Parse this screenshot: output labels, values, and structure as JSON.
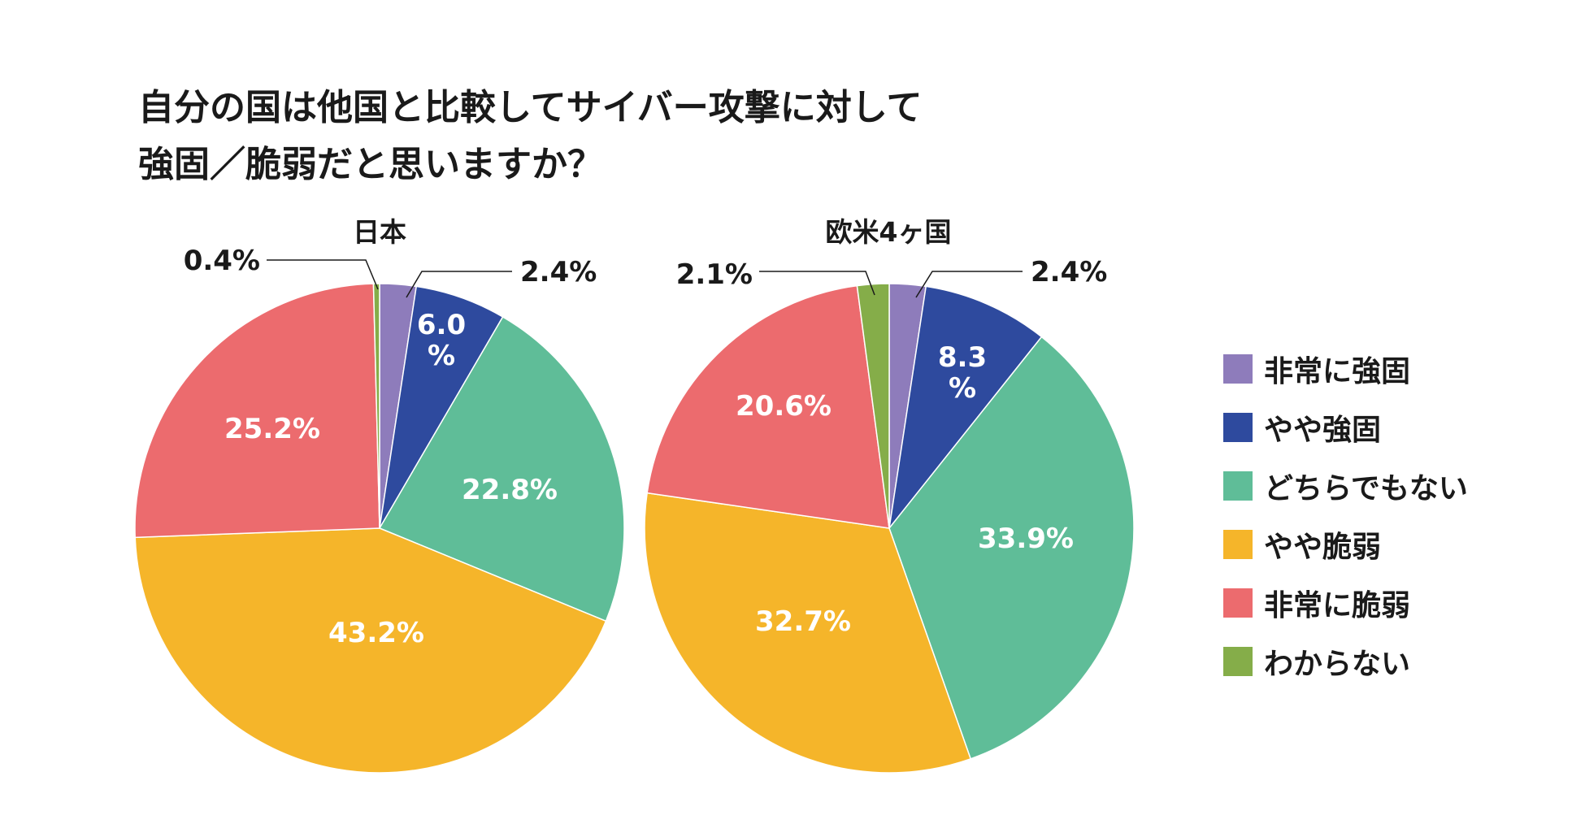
{
  "title_lines": [
    "自分の国は他国と比較してサイバー攻撃に対して",
    "強固／脆弱だと思いますか？"
  ],
  "legend": [
    {
      "label": "非常に強固",
      "color": "#8E7CBB"
    },
    {
      "label": "やや強固",
      "color": "#2E4A9E"
    },
    {
      "label": "どちらでもない",
      "color": "#5FBD98"
    },
    {
      "label": "やや脆弱",
      "color": "#F5B52A"
    },
    {
      "label": "非常に脆弱",
      "color": "#EC6B6E"
    },
    {
      "label": "わからない",
      "color": "#85AD49"
    }
  ],
  "chart_data": [
    {
      "type": "pie",
      "title": "日本",
      "categories": [
        "非常に強固",
        "やや強固",
        "どちらでもない",
        "やや脆弱",
        "非常に脆弱",
        "わからない"
      ],
      "values": [
        2.4,
        6.0,
        22.8,
        43.2,
        25.2,
        0.4
      ],
      "labels": [
        "2.4%",
        "6.0\n%",
        "22.8%",
        "43.2%",
        "25.2%",
        "0.4%"
      ],
      "start": "12 o'clock, clockwise"
    },
    {
      "type": "pie",
      "title": "欧米4ヶ国",
      "categories": [
        "非常に強固",
        "やや強固",
        "どちらでもない",
        "やや脆弱",
        "非常に脆弱",
        "わからない"
      ],
      "values": [
        2.4,
        8.3,
        33.9,
        32.7,
        20.6,
        2.1
      ],
      "labels": [
        "2.4%",
        "8.3\n%",
        "33.9%",
        "32.7%",
        "20.6%",
        "2.1%"
      ],
      "start": "12 o'clock, clockwise"
    }
  ]
}
